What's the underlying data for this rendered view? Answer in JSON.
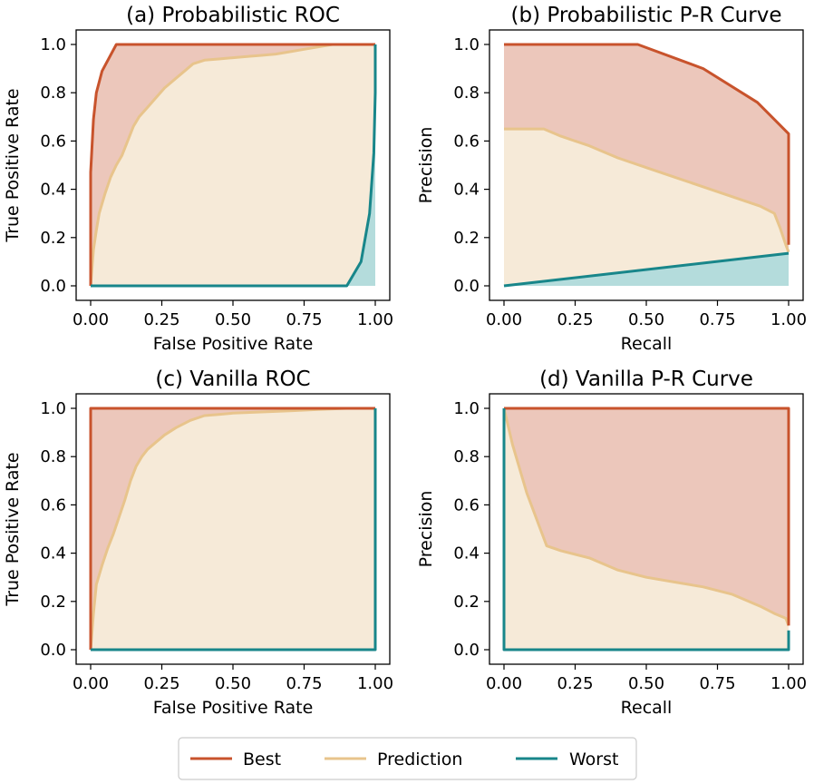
{
  "chart_data": [
    {
      "type": "line",
      "panel": "a",
      "title": "(a) Probabilistic ROC",
      "xlabel": "False Positive Rate",
      "ylabel": "True Positive Rate",
      "xlim": [
        0,
        1
      ],
      "ylim": [
        0,
        1
      ],
      "xticks": [
        "0.00",
        "0.25",
        "0.50",
        "0.75",
        "1.00"
      ],
      "yticks": [
        "0.0",
        "0.2",
        "0.4",
        "0.6",
        "0.8",
        "1.0"
      ],
      "series": [
        {
          "name": "Best",
          "x": [
            0,
            0,
            0.01,
            0.02,
            0.04,
            0.09,
            1.0
          ],
          "y": [
            0,
            0.47,
            0.69,
            0.8,
            0.89,
            1.0,
            1.0
          ]
        },
        {
          "name": "Prediction",
          "x": [
            0,
            0.01,
            0.02,
            0.03,
            0.05,
            0.07,
            0.09,
            0.11,
            0.13,
            0.15,
            0.17,
            0.2,
            0.23,
            0.26,
            0.3,
            0.33,
            0.36,
            0.4,
            0.45,
            0.5,
            0.55,
            0.6,
            0.65,
            0.7,
            0.75,
            0.8,
            0.85,
            0.9,
            0.95,
            1.0
          ],
          "y": [
            0,
            0.15,
            0.23,
            0.3,
            0.38,
            0.45,
            0.5,
            0.54,
            0.6,
            0.66,
            0.7,
            0.74,
            0.78,
            0.82,
            0.86,
            0.89,
            0.92,
            0.935,
            0.94,
            0.945,
            0.95,
            0.955,
            0.96,
            0.97,
            0.98,
            0.99,
            1.0,
            1.0,
            1.0,
            1.0
          ]
        },
        {
          "name": "Worst",
          "x": [
            0,
            0.9,
            0.95,
            0.98,
            0.995,
            1.0,
            1.0
          ],
          "y": [
            0,
            0,
            0.1,
            0.3,
            0.55,
            0.8,
            1.0
          ]
        }
      ]
    },
    {
      "type": "line",
      "panel": "b",
      "title": "(b) Probabilistic P-R Curve",
      "xlabel": "Recall",
      "ylabel": "Precision",
      "xlim": [
        0,
        1
      ],
      "ylim": [
        0,
        1
      ],
      "xticks": [
        "0.00",
        "0.25",
        "0.50",
        "0.75",
        "1.00"
      ],
      "yticks": [
        "0.0",
        "0.2",
        "0.4",
        "0.6",
        "0.8",
        "1.0"
      ],
      "series": [
        {
          "name": "Best",
          "x": [
            0,
            0.47,
            0.7,
            0.89,
            1.0,
            1.0
          ],
          "y": [
            1.0,
            1.0,
            0.9,
            0.76,
            0.63,
            0.17
          ]
        },
        {
          "name": "Prediction",
          "x": [
            0,
            0.14,
            0.2,
            0.3,
            0.4,
            0.5,
            0.6,
            0.7,
            0.8,
            0.9,
            0.95,
            0.97,
            0.99,
            1.0
          ],
          "y": [
            0.65,
            0.65,
            0.62,
            0.58,
            0.53,
            0.49,
            0.45,
            0.41,
            0.37,
            0.33,
            0.3,
            0.24,
            0.17,
            0.14
          ]
        },
        {
          "name": "Worst",
          "x": [
            0,
            1.0
          ],
          "y": [
            0,
            0.135
          ]
        }
      ]
    },
    {
      "type": "line",
      "panel": "c",
      "title": "(c) Vanilla ROC",
      "xlabel": "False Positive Rate",
      "ylabel": "True Positive Rate",
      "xlim": [
        0,
        1
      ],
      "ylim": [
        0,
        1
      ],
      "xticks": [
        "0.00",
        "0.25",
        "0.50",
        "0.75",
        "1.00"
      ],
      "yticks": [
        "0.0",
        "0.2",
        "0.4",
        "0.6",
        "0.8",
        "1.0"
      ],
      "series": [
        {
          "name": "Best",
          "x": [
            0,
            0,
            1.0
          ],
          "y": [
            0,
            1.0,
            1.0
          ]
        },
        {
          "name": "Prediction",
          "x": [
            0,
            0.01,
            0.02,
            0.04,
            0.06,
            0.08,
            0.1,
            0.12,
            0.14,
            0.16,
            0.18,
            0.2,
            0.23,
            0.26,
            0.3,
            0.35,
            0.4,
            0.45,
            0.5,
            0.6,
            0.7,
            0.8,
            0.9,
            1.0
          ],
          "y": [
            0,
            0.15,
            0.27,
            0.35,
            0.42,
            0.48,
            0.55,
            0.62,
            0.7,
            0.76,
            0.8,
            0.83,
            0.86,
            0.89,
            0.92,
            0.95,
            0.97,
            0.975,
            0.98,
            0.985,
            0.99,
            0.995,
            1.0,
            1.0
          ]
        },
        {
          "name": "Worst",
          "x": [
            0,
            1.0,
            1.0
          ],
          "y": [
            0,
            0,
            1.0
          ]
        }
      ]
    },
    {
      "type": "line",
      "panel": "d",
      "title": "(d) Vanilla P-R Curve",
      "xlabel": "Recall",
      "ylabel": "Precision",
      "xlim": [
        0,
        1
      ],
      "ylim": [
        0,
        1
      ],
      "xticks": [
        "0.00",
        "0.25",
        "0.50",
        "0.75",
        "1.00"
      ],
      "yticks": [
        "0.0",
        "0.2",
        "0.4",
        "0.6",
        "0.8",
        "1.0"
      ],
      "series": [
        {
          "name": "Best",
          "x": [
            0,
            1.0,
            1.0
          ],
          "y": [
            1.0,
            1.0,
            0.1
          ]
        },
        {
          "name": "Prediction",
          "x": [
            0,
            0.03,
            0.08,
            0.15,
            0.2,
            0.3,
            0.4,
            0.5,
            0.6,
            0.7,
            0.8,
            0.9,
            0.95,
            0.99,
            1.0
          ],
          "y": [
            1.0,
            0.85,
            0.65,
            0.43,
            0.41,
            0.38,
            0.33,
            0.3,
            0.28,
            0.26,
            0.23,
            0.18,
            0.15,
            0.13,
            0.1
          ]
        },
        {
          "name": "Worst",
          "x": [
            0,
            0,
            1.0,
            1.0
          ],
          "y": [
            1.0,
            0,
            0,
            0.08
          ]
        }
      ]
    }
  ],
  "legend": {
    "entries": [
      {
        "name": "Best",
        "color": "#c8532c"
      },
      {
        "name": "Prediction",
        "color": "#e8c48c"
      },
      {
        "name": "Worst",
        "color": "#18868a"
      }
    ]
  },
  "colors": {
    "best": "#c8532c",
    "best_fill": "#ecc7bb",
    "prediction": "#e8c48c",
    "prediction_fill": "#f6ead8",
    "worst": "#18868a",
    "worst_fill": "#b4dcdc"
  }
}
